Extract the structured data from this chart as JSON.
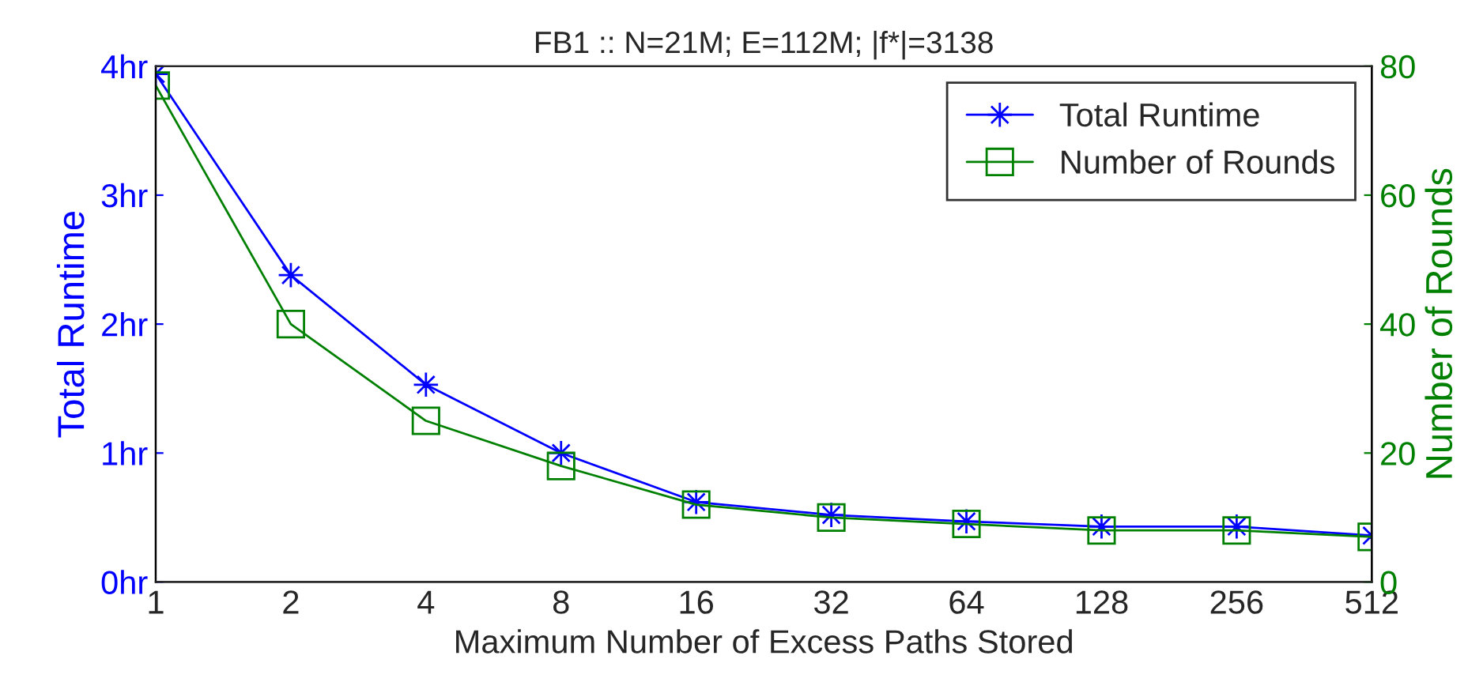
{
  "chart_data": {
    "type": "line",
    "title": "FB1 :: N=21M; E=112M; |f*|=3138",
    "xlabel": "Maximum Number of Excess Paths Stored",
    "ylabel": "Total Runtime",
    "y2label": "Number of Rounds",
    "categories": [
      "1",
      "2",
      "4",
      "8",
      "16",
      "32",
      "64",
      "128",
      "256",
      "512"
    ],
    "series": [
      {
        "name": "Total Runtime",
        "color": "#0000ff",
        "marker": "star",
        "values": [
          3.94,
          2.38,
          1.53,
          1.0,
          0.62,
          0.52,
          0.47,
          0.43,
          0.43,
          0.36
        ]
      },
      {
        "name": "Number of Rounds",
        "color": "#008000",
        "marker": "square",
        "axis": "y2",
        "values": [
          77,
          40,
          25,
          18,
          12,
          10,
          9,
          8,
          8,
          7
        ]
      }
    ],
    "ylim": [
      0,
      4
    ],
    "yticks": [
      {
        "value": 0,
        "label": "0hr"
      },
      {
        "value": 1,
        "label": "1hr"
      },
      {
        "value": 2,
        "label": "2hr"
      },
      {
        "value": 3,
        "label": "3hr"
      },
      {
        "value": 4,
        "label": "4hr"
      }
    ],
    "y2lim": [
      0,
      80
    ],
    "y2ticks": [
      0,
      20,
      40,
      60,
      80
    ],
    "legend": "top right",
    "grid": false
  }
}
